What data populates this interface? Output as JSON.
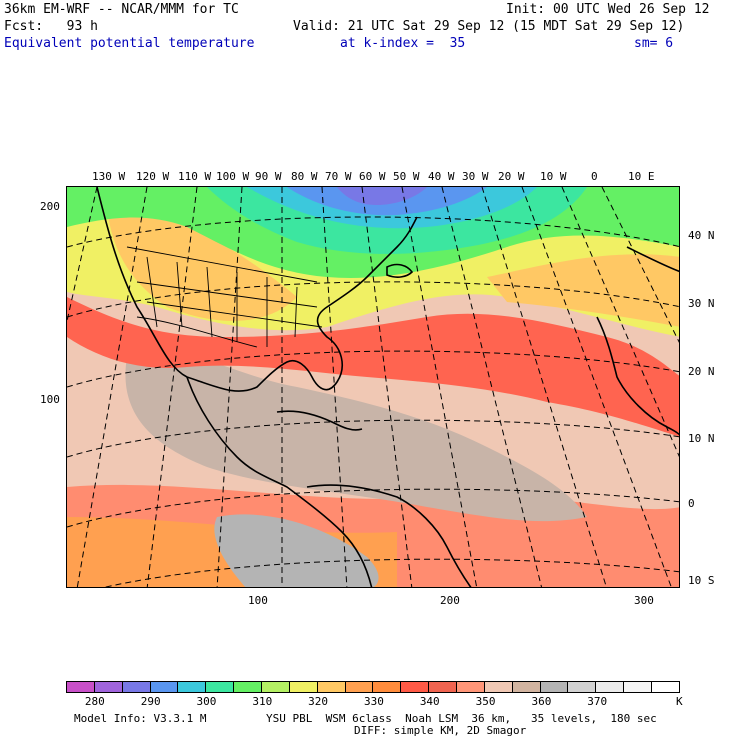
{
  "header": {
    "line1_left": "36km EM-WRF -- NCAR/MMM for TC",
    "line1_right": "Init: 00 UTC Wed 26 Sep 12",
    "line2_left": "Fcst:   93 h",
    "line2_right": "Valid: 21 UTC Sat 29 Sep 12 (15 MDT Sat 29 Sep 12)",
    "field_name": "Equivalent potential temperature",
    "level": "at k-index =  35",
    "smoothing": "sm= 6"
  },
  "map": {
    "longitude_labels": [
      "130 W",
      "120 W",
      "110 W",
      "100 W",
      "90 W",
      "80 W",
      "70 W",
      "60 W",
      "50 W",
      "40 W",
      "30 W",
      "20 W",
      "10 W",
      "0",
      "10 E"
    ],
    "latitude_labels": [
      "40 N",
      "30 N",
      "20 N",
      "10 N",
      "0",
      "10 S"
    ],
    "grid_x_labels": [
      "100",
      "200",
      "300"
    ],
    "grid_y_labels": [
      "200",
      "100"
    ]
  },
  "colorbar": {
    "colors": [
      "#c850c8",
      "#a064dc",
      "#7878e6",
      "#5a96f0",
      "#3cc8dc",
      "#3ce6a0",
      "#64f064",
      "#b4f064",
      "#f0f064",
      "#ffc864",
      "#ffa050",
      "#ff8c3c",
      "#ff5a46",
      "#f06450",
      "#ff9678",
      "#f0c8b4",
      "#d2b4a0",
      "#b4b4b4",
      "#d2d2d2",
      "#ebebeb",
      "#f5f5f5",
      "#ffffff"
    ],
    "labels": [
      "280",
      "290",
      "300",
      "310",
      "320",
      "330",
      "340",
      "350",
      "360",
      "370"
    ],
    "unit": "K"
  },
  "footer": {
    "line1": "Model Info: V3.3.1 M         YSU PBL  WSM 6class  Noah LSM  36 km,   35 levels,  180 sec",
    "line2": "DIFF: simple KM, 2D Smagor"
  }
}
